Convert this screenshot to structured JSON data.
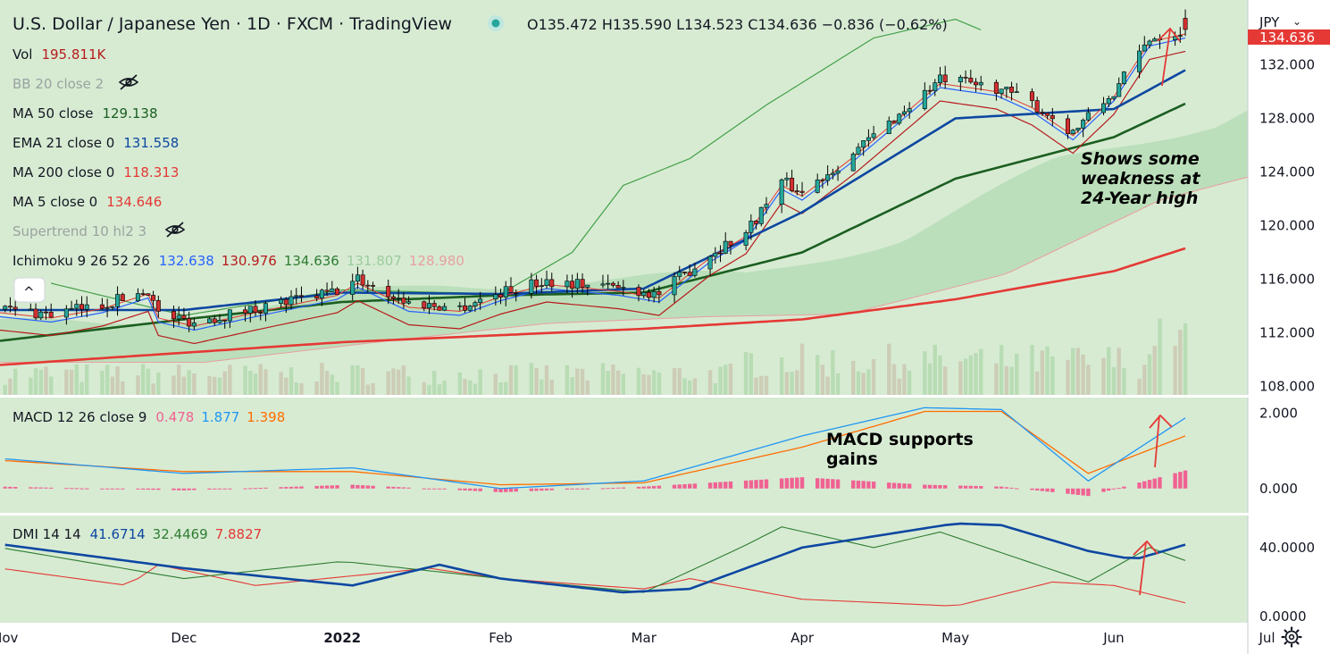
{
  "header": {
    "symbol_title": "U.S. Dollar / Japanese Yen · 1D · FXCM · TradingView",
    "ohlc_text": "O135.472  H135.590  L134.523  C134.636  −0.836 (−0.62%)",
    "currency_label": "JPY",
    "price_tag": "134.636",
    "status_dot_color": "#26a69a"
  },
  "legend": {
    "vol_label": "Vol",
    "vol_value": "195.811K",
    "bb_label": "BB 20 close 2",
    "ma50_label": "MA 50 close",
    "ma50_value": "129.138",
    "ema21_label": "EMA 21 close 0",
    "ema21_value": "131.558",
    "ma200_label": "MA 200 close 0",
    "ma200_value": "118.313",
    "ma5_label": "MA 5 close 0",
    "ma5_value": "134.646",
    "supertrend_label": "Supertrend 10 hl2 3",
    "ichimoku_label": "Ichimoku 9 26 52 26",
    "ichimoku_values": [
      "132.638",
      "130.976",
      "134.636",
      "131.807",
      "128.980"
    ],
    "collapse_glyph": "^"
  },
  "macd_legend": {
    "label": "MACD 12 26 close 9",
    "values": [
      "0.478",
      "1.877",
      "1.398"
    ]
  },
  "dmi_legend": {
    "label": "DMI 14 14",
    "values": [
      "41.6714",
      "32.4469",
      "7.8827"
    ]
  },
  "annotations": {
    "price_note": [
      "Shows some",
      "weakness at",
      "24-Year high"
    ],
    "macd_note": [
      "MACD supports",
      "gains"
    ]
  },
  "colors": {
    "background": "#d7ebd3",
    "up": "#26a69a",
    "down": "#d32f2f",
    "ma50": "#1b5e20",
    "ema21": "#0d47a1",
    "ma200": "#e53935",
    "ma5": "#e53935",
    "tenkan": "#2962ff",
    "kijun": "#b71c1c",
    "chikou": "#43a047",
    "cloud": "#a5d6a7",
    "macd_line": "#2196f3",
    "signal_line": "#ff6d00",
    "hist": "#f06292",
    "dmi_adx": "#0d47a1",
    "dmi_plus": "#2e7d32",
    "dmi_minus": "#e53935",
    "arrow": "#e53935"
  },
  "chart_data": [
    {
      "type": "candlestick",
      "title": "U.S. Dollar / Japanese Yen · 1D · FXCM",
      "x_tick_labels": [
        "Nov",
        "Dec",
        "2022",
        "Feb",
        "Mar",
        "Apr",
        "May",
        "Jun",
        "Jul"
      ],
      "y_tick_labels": [
        "108.000",
        "112.000",
        "116.000",
        "120.000",
        "124.000",
        "128.000",
        "132.000"
      ],
      "ylim": [
        107.5,
        135.5
      ],
      "last": {
        "open": 135.472,
        "high": 135.59,
        "low": 134.523,
        "close": 134.636
      },
      "close_trend": [
        [
          "2021-10-26",
          113.8
        ],
        [
          "2021-11-05",
          113.4
        ],
        [
          "2021-11-15",
          114.1
        ],
        [
          "2021-11-24",
          115.2
        ],
        [
          "2021-11-26",
          113.4
        ],
        [
          "2021-12-03",
          112.8
        ],
        [
          "2021-12-15",
          113.8
        ],
        [
          "2021-12-31",
          115.1
        ],
        [
          "2022-01-04",
          116.0
        ],
        [
          "2022-01-14",
          114.2
        ],
        [
          "2022-01-24",
          113.9
        ],
        [
          "2022-02-01",
          115.0
        ],
        [
          "2022-02-10",
          115.9
        ],
        [
          "2022-02-24",
          115.4
        ],
        [
          "2022-03-04",
          114.9
        ],
        [
          "2022-03-14",
          117.9
        ],
        [
          "2022-03-21",
          119.5
        ],
        [
          "2022-03-28",
          123.3
        ],
        [
          "2022-04-01",
          122.5
        ],
        [
          "2022-04-11",
          125.4
        ],
        [
          "2022-04-20",
          128.3
        ],
        [
          "2022-04-28",
          130.9
        ],
        [
          "2022-05-09",
          130.3
        ],
        [
          "2022-05-16",
          129.1
        ],
        [
          "2022-05-24",
          127.0
        ],
        [
          "2022-06-01",
          129.9
        ],
        [
          "2022-06-08",
          134.0
        ],
        [
          "2022-06-15",
          134.6
        ]
      ],
      "ma50": [
        [
          "2021-10-26",
          111.4
        ],
        [
          "2021-12-01",
          113.0
        ],
        [
          "2022-01-01",
          114.3
        ],
        [
          "2022-02-01",
          114.8
        ],
        [
          "2022-03-01",
          115.0
        ],
        [
          "2022-04-01",
          118.0
        ],
        [
          "2022-05-01",
          123.5
        ],
        [
          "2022-06-01",
          126.6
        ],
        [
          "2022-06-15",
          129.1
        ]
      ],
      "ema21": [
        [
          "2021-10-26",
          113.7
        ],
        [
          "2021-12-01",
          113.7
        ],
        [
          "2022-01-01",
          115.0
        ],
        [
          "2022-02-01",
          114.9
        ],
        [
          "2022-03-01",
          115.3
        ],
        [
          "2022-04-01",
          121.0
        ],
        [
          "2022-05-01",
          128.0
        ],
        [
          "2022-06-01",
          128.7
        ],
        [
          "2022-06-15",
          131.6
        ]
      ],
      "ma200": [
        [
          "2021-10-26",
          109.6
        ],
        [
          "2022-01-01",
          111.3
        ],
        [
          "2022-03-01",
          112.3
        ],
        [
          "2022-04-01",
          113.0
        ],
        [
          "2022-05-01",
          114.5
        ],
        [
          "2022-06-01",
          116.6
        ],
        [
          "2022-06-15",
          118.3
        ]
      ],
      "chikou": [
        [
          "2021-11-05",
          115.7
        ],
        [
          "2021-12-01",
          113.3
        ],
        [
          "2022-01-01",
          115.2
        ],
        [
          "2022-02-01",
          114.9
        ],
        [
          "2022-02-15",
          118.0
        ],
        [
          "2022-02-25",
          123.0
        ],
        [
          "2022-03-10",
          125.0
        ],
        [
          "2022-03-25",
          129.0
        ],
        [
          "2022-04-15",
          134.0
        ],
        [
          "2022-05-01",
          135.4
        ],
        [
          "2022-05-06",
          134.6
        ]
      ],
      "volume_relative": "up to 0.27 of pane height"
    },
    {
      "type": "line",
      "title": "MACD 12 26 close 9",
      "y_tick_labels": [
        "0.000",
        "2.000"
      ],
      "ylim": [
        -0.6,
        2.3
      ],
      "series": [
        {
          "name": "MACD",
          "points": [
            [
              "2021-10-26",
              0.8
            ],
            [
              "2021-12-01",
              0.4
            ],
            [
              "2022-01-03",
              0.55
            ],
            [
              "2022-02-01",
              0.0
            ],
            [
              "2022-03-01",
              0.2
            ],
            [
              "2022-04-01",
              1.4
            ],
            [
              "2022-04-25",
              2.15
            ],
            [
              "2022-05-10",
              2.1
            ],
            [
              "2022-05-27",
              0.2
            ],
            [
              "2022-06-15",
              1.877
            ]
          ]
        },
        {
          "name": "Signal",
          "points": [
            [
              "2021-10-26",
              0.75
            ],
            [
              "2021-12-01",
              0.45
            ],
            [
              "2022-01-03",
              0.45
            ],
            [
              "2022-02-01",
              0.1
            ],
            [
              "2022-03-01",
              0.15
            ],
            [
              "2022-04-01",
              1.1
            ],
            [
              "2022-04-25",
              2.05
            ],
            [
              "2022-05-10",
              2.05
            ],
            [
              "2022-05-27",
              0.4
            ],
            [
              "2022-06-15",
              1.398
            ]
          ]
        },
        {
          "name": "Histogram",
          "last": 0.478
        }
      ]
    },
    {
      "type": "line",
      "title": "DMI 14 14",
      "y_tick_labels": [
        "0.0000",
        "40.0000"
      ],
      "ylim": [
        0,
        56
      ],
      "series": [
        {
          "name": "ADX",
          "last": 41.6714
        },
        {
          "name": "+DI",
          "last": 32.4469
        },
        {
          "name": "-DI",
          "last": 7.8827
        }
      ]
    }
  ]
}
